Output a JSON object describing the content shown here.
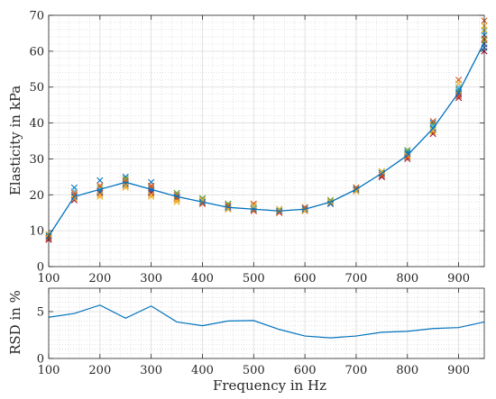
{
  "chart_data": [
    {
      "type": "scatter",
      "ylabel": "Elasticity in kPa",
      "xlabel": "",
      "xlim": [
        100,
        950
      ],
      "ylim": [
        0,
        70
      ],
      "xticks": [
        100,
        200,
        300,
        400,
        500,
        600,
        700,
        800,
        900
      ],
      "yticks": [
        0,
        10,
        20,
        30,
        40,
        50,
        60,
        70
      ],
      "grid": true,
      "minor_grid": true,
      "x": [
        100,
        150,
        200,
        250,
        300,
        350,
        400,
        450,
        500,
        550,
        600,
        650,
        700,
        750,
        800,
        850,
        900,
        950
      ],
      "mean_line": {
        "color": "#0072BD",
        "values": [
          8.5,
          19.5,
          21.5,
          23.5,
          21.5,
          19.5,
          18.0,
          16.5,
          16.0,
          15.5,
          16.0,
          18.0,
          21.5,
          26.0,
          31.0,
          38.5,
          48.5,
          62.5
        ]
      },
      "series": [
        {
          "color": "#0072BD",
          "values": [
            8.0,
            22.0,
            24.0,
            25.0,
            23.5,
            20.5,
            19.0,
            17.5,
            16.5,
            16.0,
            16.5,
            18.5,
            22.0,
            26.5,
            32.0,
            40.0,
            49.5,
            64.5
          ]
        },
        {
          "color": "#D95319",
          "values": [
            9.0,
            20.5,
            22.5,
            24.0,
            22.0,
            20.0,
            18.5,
            17.0,
            17.5,
            15.5,
            16.0,
            18.0,
            21.5,
            26.0,
            31.0,
            38.5,
            52.0,
            68.5
          ]
        },
        {
          "color": "#EDB120",
          "values": [
            8.5,
            19.0,
            19.5,
            22.0,
            19.5,
            18.5,
            17.5,
            16.0,
            16.5,
            15.0,
            15.5,
            17.5,
            21.0,
            25.5,
            30.5,
            37.5,
            48.0,
            67.0
          ]
        },
        {
          "color": "#7E2F8E",
          "values": [
            8.0,
            19.5,
            21.0,
            23.0,
            21.0,
            19.5,
            18.0,
            16.5,
            15.5,
            15.0,
            15.5,
            18.0,
            21.5,
            25.0,
            31.0,
            38.0,
            48.0,
            62.0
          ]
        },
        {
          "color": "#77AC30",
          "values": [
            8.5,
            20.0,
            22.0,
            24.5,
            22.5,
            20.5,
            19.0,
            17.5,
            16.0,
            16.0,
            16.5,
            18.5,
            22.0,
            26.5,
            32.5,
            39.5,
            49.0,
            63.0
          ]
        },
        {
          "color": "#4DBEEE",
          "values": [
            9.0,
            21.0,
            21.5,
            23.5,
            21.5,
            19.0,
            18.5,
            16.5,
            16.5,
            15.5,
            16.0,
            18.0,
            21.5,
            26.0,
            31.5,
            39.0,
            50.0,
            65.5
          ]
        },
        {
          "color": "#A2142F",
          "values": [
            7.5,
            18.5,
            20.5,
            22.5,
            20.5,
            19.0,
            17.5,
            16.0,
            15.5,
            15.0,
            15.5,
            17.5,
            21.0,
            25.0,
            30.0,
            37.0,
            47.0,
            60.0
          ]
        },
        {
          "color": "#0072BD",
          "values": [
            8.5,
            19.5,
            21.0,
            23.0,
            21.5,
            19.5,
            18.0,
            16.5,
            16.0,
            15.5,
            16.0,
            17.5,
            21.5,
            26.0,
            31.5,
            38.5,
            48.5,
            61.0
          ]
        },
        {
          "color": "#D95319",
          "values": [
            8.0,
            20.0,
            22.5,
            23.5,
            22.5,
            19.0,
            17.5,
            17.0,
            15.5,
            15.0,
            16.5,
            18.0,
            22.0,
            25.5,
            30.5,
            40.5,
            47.5,
            63.5
          ]
        },
        {
          "color": "#EDB120",
          "values": [
            9.0,
            19.0,
            20.0,
            22.5,
            20.0,
            18.0,
            18.5,
            16.0,
            17.0,
            16.0,
            15.5,
            18.0,
            21.0,
            26.5,
            31.0,
            38.0,
            51.0,
            66.0
          ]
        }
      ]
    },
    {
      "type": "line",
      "ylabel": "RSD in %",
      "xlabel": "Frequency in Hz",
      "xlim": [
        100,
        950
      ],
      "ylim": [
        0,
        7.5
      ],
      "xticks": [
        100,
        200,
        300,
        400,
        500,
        600,
        700,
        800,
        900
      ],
      "yticks": [
        0,
        5
      ],
      "grid": true,
      "minor_grid": true,
      "x": [
        100,
        150,
        200,
        250,
        300,
        350,
        400,
        450,
        500,
        550,
        600,
        650,
        700,
        750,
        800,
        850,
        900,
        950
      ],
      "series": [
        {
          "color": "#0072BD",
          "values": [
            4.4,
            4.8,
            5.7,
            4.3,
            5.6,
            3.9,
            3.5,
            4.0,
            4.05,
            3.1,
            2.4,
            2.2,
            2.4,
            2.8,
            2.9,
            3.2,
            3.3,
            3.9
          ]
        }
      ]
    }
  ]
}
